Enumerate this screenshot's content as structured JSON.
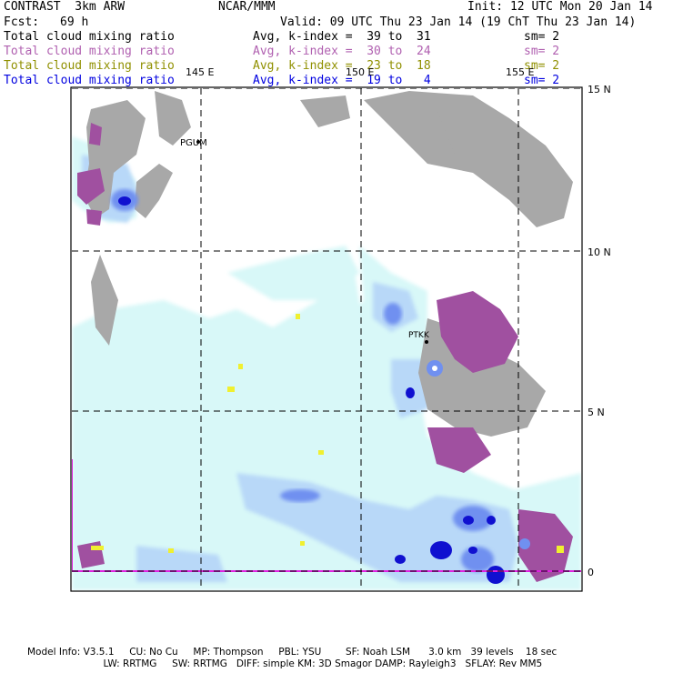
{
  "header": {
    "model": "CONTRAST  3km ARW",
    "org": "NCAR/MMM",
    "init": "Init: 12 UTC Mon 20 Jan 14",
    "fcst_label": "Fcst:",
    "fcst_value": "69 h",
    "valid": "Valid: 09 UTC Thu 23 Jan 14 (19 ChT Thu 23 Jan 14)"
  },
  "legend_rows": [
    {
      "field": "Total cloud mixing ratio",
      "range": "Avg, k-index =  39 to  31",
      "sm": "sm= 2",
      "color": "#000000"
    },
    {
      "field": "Total cloud mixing ratio",
      "range": "Avg, k-index =  30 to  24",
      "sm": "sm= 2",
      "color": "#b060b0"
    },
    {
      "field": "Total cloud mixing ratio",
      "range": "Avg, k-index =  23 to  18",
      "sm": "sm= 2",
      "color": "#909000"
    },
    {
      "field": "Total cloud mixing ratio",
      "range": "Avg, k-index =  19 to   4",
      "sm": "sm= 2",
      "color": "#0000e0"
    }
  ],
  "map": {
    "lon_labels": [
      "145 E",
      "150 E",
      "155 E"
    ],
    "lat_labels": [
      "15 N",
      "10 N",
      "5 N",
      "0"
    ],
    "stations": [
      "PGUM",
      "PTKK"
    ],
    "colors": {
      "ocean": "#ffffff",
      "light_cyan": "#d8f8f8",
      "light_blue": "#b8d8f8",
      "mid_blue": "#7090f0",
      "dark_blue": "#1010d0",
      "gray": "#a8a8a8",
      "purple": "#a050a0",
      "yellow": "#f0f030",
      "magenta_line": "#e020e0"
    }
  },
  "footer": {
    "line1": "Model Info: V3.5.1     CU: No Cu     MP: Thompson     PBL: YSU        SF: Noah LSM      3.0 km   39 levels    18 sec",
    "line2": "                         LW: RRTMG     SW: RRTMG   DIFF: simple KM: 3D Smagor DAMP: Rayleigh3   SFLAY: Rev MM5"
  }
}
